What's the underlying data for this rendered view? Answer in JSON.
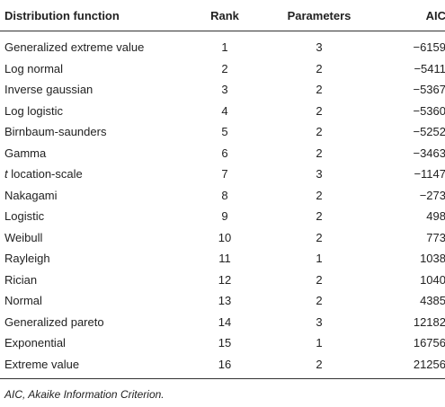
{
  "table": {
    "headers": {
      "name": "Distribution function",
      "rank": "Rank",
      "parameters": "Parameters",
      "aic": "AIC"
    },
    "rows": [
      {
        "name_prefix": "",
        "name": "Generalized extreme value",
        "rank": "1",
        "parameters": "3",
        "aic": "−6159"
      },
      {
        "name_prefix": "",
        "name": "Log normal",
        "rank": "2",
        "parameters": "2",
        "aic": "−5411"
      },
      {
        "name_prefix": "",
        "name": "Inverse gaussian",
        "rank": "3",
        "parameters": "2",
        "aic": "−5367"
      },
      {
        "name_prefix": "",
        "name": "Log logistic",
        "rank": "4",
        "parameters": "2",
        "aic": "−5360"
      },
      {
        "name_prefix": "",
        "name": "Birnbaum-saunders",
        "rank": "5",
        "parameters": "2",
        "aic": "−5252"
      },
      {
        "name_prefix": "",
        "name": "Gamma",
        "rank": "6",
        "parameters": "2",
        "aic": "−3463"
      },
      {
        "name_prefix": "t",
        "name": " location-scale",
        "rank": "7",
        "parameters": "3",
        "aic": "−1147"
      },
      {
        "name_prefix": "",
        "name": "Nakagami",
        "rank": "8",
        "parameters": "2",
        "aic": "−273"
      },
      {
        "name_prefix": "",
        "name": "Logistic",
        "rank": "9",
        "parameters": "2",
        "aic": "498"
      },
      {
        "name_prefix": "",
        "name": "Weibull",
        "rank": "10",
        "parameters": "2",
        "aic": "773"
      },
      {
        "name_prefix": "",
        "name": "Rayleigh",
        "rank": "11",
        "parameters": "1",
        "aic": "1038"
      },
      {
        "name_prefix": "",
        "name": "Rician",
        "rank": "12",
        "parameters": "2",
        "aic": "1040"
      },
      {
        "name_prefix": "",
        "name": "Normal",
        "rank": "13",
        "parameters": "2",
        "aic": "4385"
      },
      {
        "name_prefix": "",
        "name": "Generalized pareto",
        "rank": "14",
        "parameters": "3",
        "aic": "12182"
      },
      {
        "name_prefix": "",
        "name": "Exponential",
        "rank": "15",
        "parameters": "1",
        "aic": "16756"
      },
      {
        "name_prefix": "",
        "name": "Extreme value",
        "rank": "16",
        "parameters": "2",
        "aic": "21256"
      }
    ]
  },
  "footnote": "AIC, Akaike Information Criterion."
}
